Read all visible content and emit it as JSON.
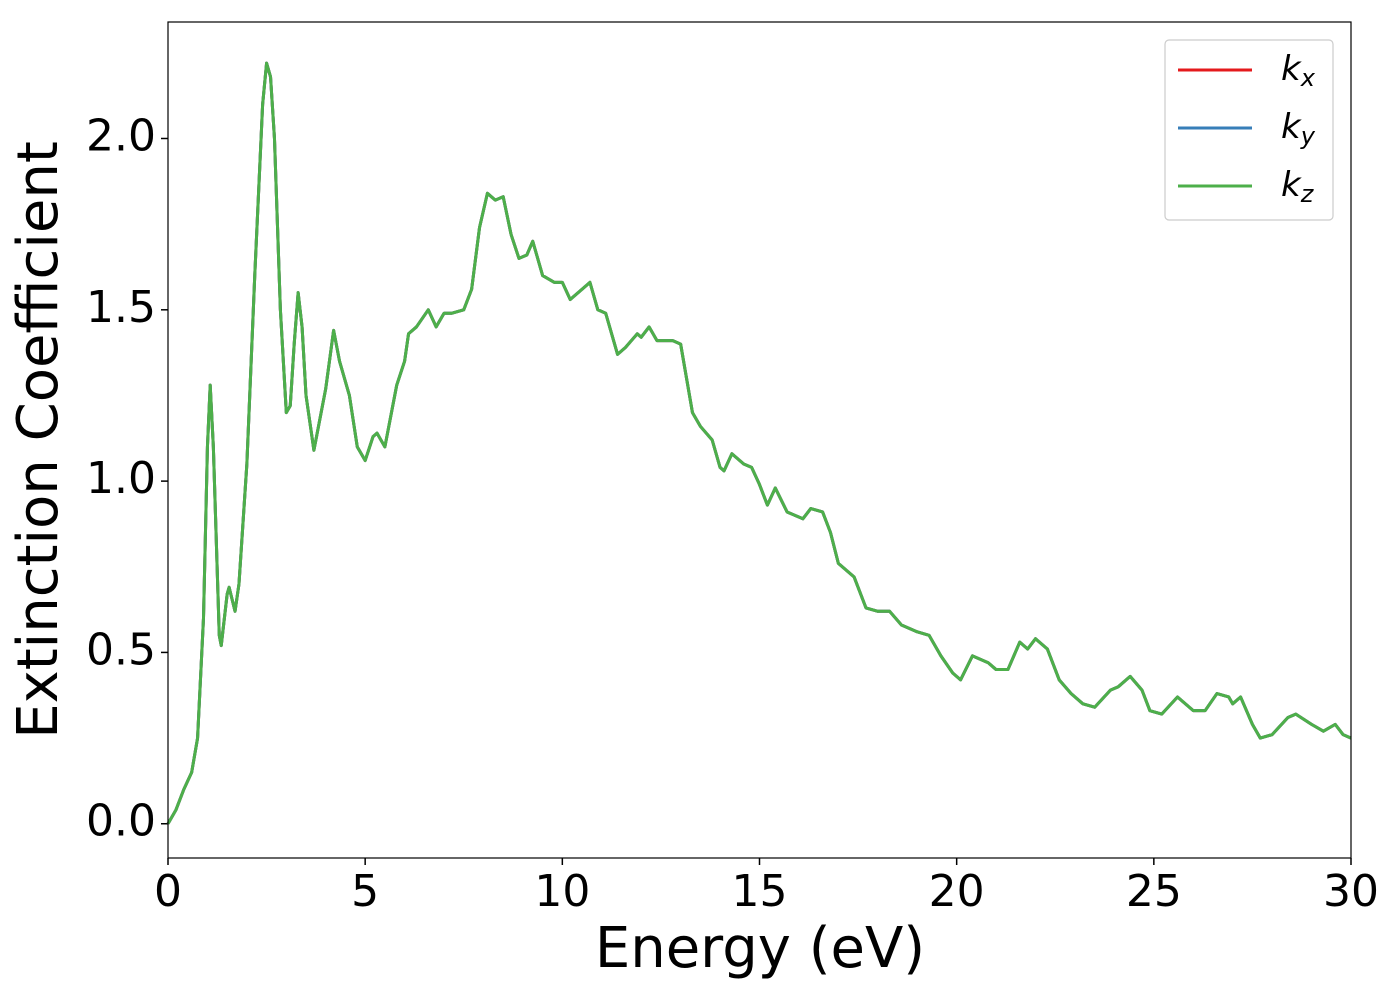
{
  "chart_data": {
    "type": "line",
    "xlabel": "Energy (eV)",
    "ylabel": "Extinction Coefficient",
    "x": [
      0,
      0.2,
      0.4,
      0.6,
      0.75,
      0.9,
      1.0,
      1.07,
      1.15,
      1.3,
      1.35,
      1.5,
      1.55,
      1.7,
      1.8,
      2.0,
      2.2,
      2.4,
      2.5,
      2.6,
      2.7,
      2.85,
      3.0,
      3.1,
      3.2,
      3.3,
      3.4,
      3.5,
      3.7,
      3.8,
      4.0,
      4.2,
      4.35,
      4.6,
      4.8,
      5.0,
      5.2,
      5.3,
      5.5,
      5.8,
      6.0,
      6.1,
      6.3,
      6.6,
      6.8,
      7.0,
      7.2,
      7.5,
      7.7,
      7.9,
      8.1,
      8.3,
      8.5,
      8.7,
      8.9,
      9.1,
      9.25,
      9.5,
      9.8,
      10.0,
      10.2,
      10.5,
      10.7,
      10.9,
      11.1,
      11.4,
      11.6,
      11.9,
      12.0,
      12.2,
      12.4,
      12.8,
      13.0,
      13.3,
      13.5,
      13.8,
      14.0,
      14.1,
      14.3,
      14.6,
      14.8,
      15.0,
      15.2,
      15.4,
      15.7,
      15.9,
      16.1,
      16.3,
      16.6,
      16.8,
      17.0,
      17.4,
      17.7,
      18.0,
      18.3,
      18.6,
      19.0,
      19.3,
      19.6,
      19.9,
      20.1,
      20.4,
      20.8,
      21.0,
      21.3,
      21.6,
      21.8,
      22.0,
      22.3,
      22.6,
      22.9,
      23.2,
      23.5,
      23.9,
      24.1,
      24.4,
      24.7,
      24.9,
      25.2,
      25.6,
      26.0,
      26.3,
      26.6,
      26.9,
      27.0,
      27.2,
      27.5,
      27.7,
      28.0,
      28.4,
      28.6,
      29.0,
      29.3,
      29.6,
      29.8,
      30.0
    ],
    "series": [
      {
        "name": "kx",
        "color": "#e41a1c",
        "values": [
          0.0,
          0.04,
          0.1,
          0.15,
          0.25,
          0.6,
          1.1,
          1.28,
          1.1,
          0.55,
          0.52,
          0.67,
          0.69,
          0.62,
          0.7,
          1.05,
          1.6,
          2.1,
          2.22,
          2.18,
          2.0,
          1.5,
          1.2,
          1.22,
          1.4,
          1.55,
          1.45,
          1.25,
          1.09,
          1.15,
          1.27,
          1.44,
          1.35,
          1.25,
          1.1,
          1.06,
          1.13,
          1.14,
          1.1,
          1.28,
          1.35,
          1.43,
          1.45,
          1.5,
          1.45,
          1.49,
          1.49,
          1.5,
          1.56,
          1.74,
          1.84,
          1.82,
          1.83,
          1.72,
          1.65,
          1.66,
          1.7,
          1.6,
          1.58,
          1.58,
          1.53,
          1.56,
          1.58,
          1.5,
          1.49,
          1.37,
          1.39,
          1.43,
          1.42,
          1.45,
          1.41,
          1.41,
          1.4,
          1.2,
          1.16,
          1.12,
          1.04,
          1.03,
          1.08,
          1.05,
          1.04,
          0.99,
          0.93,
          0.98,
          0.91,
          0.9,
          0.89,
          0.92,
          0.91,
          0.85,
          0.76,
          0.72,
          0.63,
          0.62,
          0.62,
          0.58,
          0.56,
          0.55,
          0.49,
          0.44,
          0.42,
          0.49,
          0.47,
          0.45,
          0.45,
          0.53,
          0.51,
          0.54,
          0.51,
          0.42,
          0.38,
          0.35,
          0.34,
          0.39,
          0.4,
          0.43,
          0.39,
          0.33,
          0.32,
          0.37,
          0.33,
          0.33,
          0.38,
          0.37,
          0.35,
          0.37,
          0.29,
          0.25,
          0.26,
          0.31,
          0.32,
          0.29,
          0.27,
          0.29,
          0.26,
          0.25
        ]
      },
      {
        "name": "ky",
        "color": "#377eb8",
        "values": [
          0.0,
          0.04,
          0.1,
          0.15,
          0.25,
          0.6,
          1.1,
          1.28,
          1.1,
          0.55,
          0.52,
          0.67,
          0.69,
          0.62,
          0.7,
          1.05,
          1.6,
          2.1,
          2.22,
          2.18,
          2.0,
          1.5,
          1.2,
          1.22,
          1.4,
          1.55,
          1.45,
          1.25,
          1.09,
          1.15,
          1.27,
          1.44,
          1.35,
          1.25,
          1.1,
          1.06,
          1.13,
          1.14,
          1.1,
          1.28,
          1.35,
          1.43,
          1.45,
          1.5,
          1.45,
          1.49,
          1.49,
          1.5,
          1.56,
          1.74,
          1.84,
          1.82,
          1.83,
          1.72,
          1.65,
          1.66,
          1.7,
          1.6,
          1.58,
          1.58,
          1.53,
          1.56,
          1.58,
          1.5,
          1.49,
          1.37,
          1.39,
          1.43,
          1.42,
          1.45,
          1.41,
          1.41,
          1.4,
          1.2,
          1.16,
          1.12,
          1.04,
          1.03,
          1.08,
          1.05,
          1.04,
          0.99,
          0.93,
          0.98,
          0.91,
          0.9,
          0.89,
          0.92,
          0.91,
          0.85,
          0.76,
          0.72,
          0.63,
          0.62,
          0.62,
          0.58,
          0.56,
          0.55,
          0.49,
          0.44,
          0.42,
          0.49,
          0.47,
          0.45,
          0.45,
          0.53,
          0.51,
          0.54,
          0.51,
          0.42,
          0.38,
          0.35,
          0.34,
          0.39,
          0.4,
          0.43,
          0.39,
          0.33,
          0.32,
          0.37,
          0.33,
          0.33,
          0.38,
          0.37,
          0.35,
          0.37,
          0.29,
          0.25,
          0.26,
          0.31,
          0.32,
          0.29,
          0.27,
          0.29,
          0.26,
          0.25
        ]
      },
      {
        "name": "kz",
        "color": "#4daf4a",
        "values": [
          0.0,
          0.04,
          0.1,
          0.15,
          0.25,
          0.6,
          1.1,
          1.28,
          1.1,
          0.55,
          0.52,
          0.67,
          0.69,
          0.62,
          0.7,
          1.05,
          1.6,
          2.1,
          2.22,
          2.18,
          2.0,
          1.5,
          1.2,
          1.22,
          1.4,
          1.55,
          1.45,
          1.25,
          1.09,
          1.15,
          1.27,
          1.44,
          1.35,
          1.25,
          1.1,
          1.06,
          1.13,
          1.14,
          1.1,
          1.28,
          1.35,
          1.43,
          1.45,
          1.5,
          1.45,
          1.49,
          1.49,
          1.5,
          1.56,
          1.74,
          1.84,
          1.82,
          1.83,
          1.72,
          1.65,
          1.66,
          1.7,
          1.6,
          1.58,
          1.58,
          1.53,
          1.56,
          1.58,
          1.5,
          1.49,
          1.37,
          1.39,
          1.43,
          1.42,
          1.45,
          1.41,
          1.41,
          1.4,
          1.2,
          1.16,
          1.12,
          1.04,
          1.03,
          1.08,
          1.05,
          1.04,
          0.99,
          0.93,
          0.98,
          0.91,
          0.9,
          0.89,
          0.92,
          0.91,
          0.85,
          0.76,
          0.72,
          0.63,
          0.62,
          0.62,
          0.58,
          0.56,
          0.55,
          0.49,
          0.44,
          0.42,
          0.49,
          0.47,
          0.45,
          0.45,
          0.53,
          0.51,
          0.54,
          0.51,
          0.42,
          0.38,
          0.35,
          0.34,
          0.39,
          0.4,
          0.43,
          0.39,
          0.33,
          0.32,
          0.37,
          0.33,
          0.33,
          0.38,
          0.37,
          0.35,
          0.37,
          0.29,
          0.25,
          0.26,
          0.31,
          0.32,
          0.29,
          0.27,
          0.29,
          0.26,
          0.25
        ]
      }
    ],
    "xlim": [
      0,
      30
    ],
    "xticks": [
      0,
      5,
      10,
      15,
      20,
      25,
      30
    ],
    "ylim": [
      -0.1,
      2.34
    ],
    "yticks": [
      {
        "value": 0,
        "label": "0.0"
      },
      0.5,
      {
        "value": 1,
        "label": "1.0"
      },
      1.5,
      {
        "value": 2,
        "label": "2.0"
      }
    ],
    "grid": false,
    "legend": "upper right"
  }
}
